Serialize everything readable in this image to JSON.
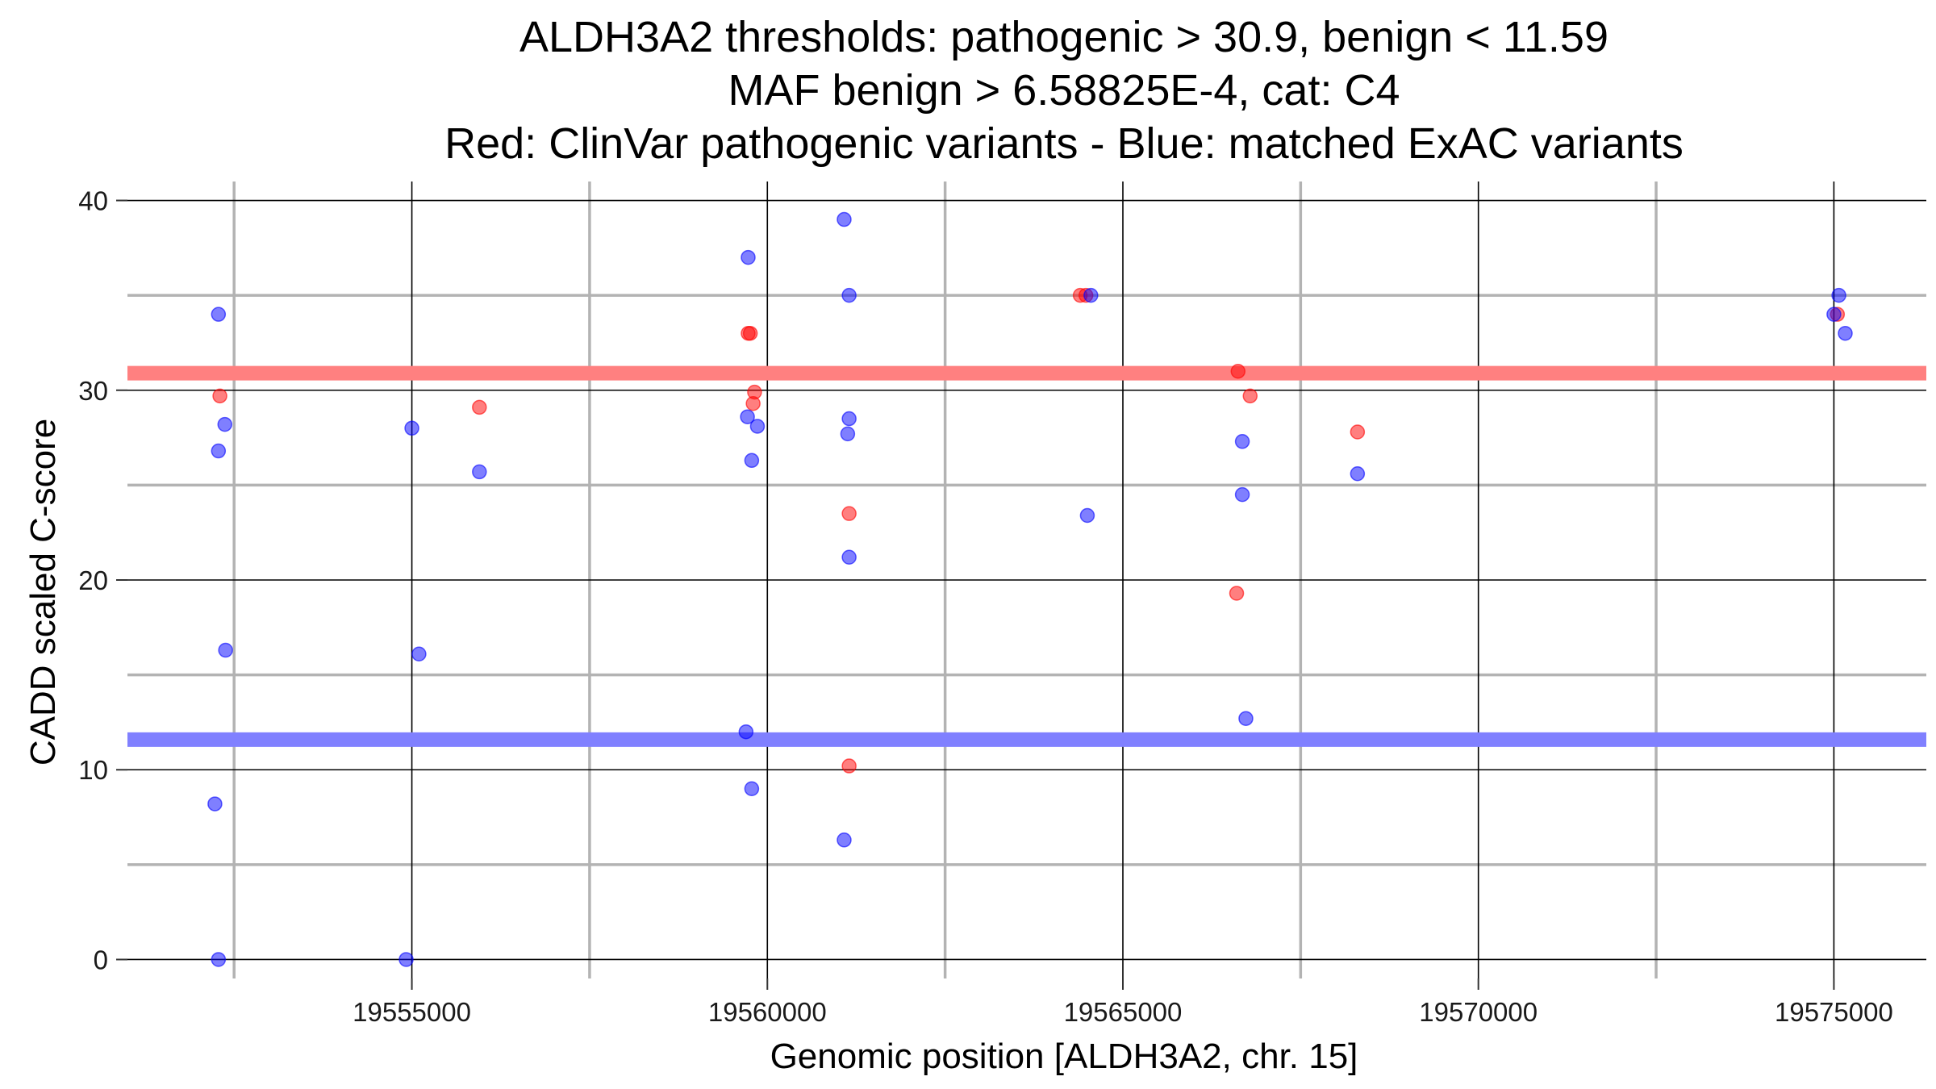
{
  "chart_data": {
    "type": "scatter",
    "title": [
      "ALDH3A2 thresholds: pathogenic > 30.9, benign < 11.59",
      "MAF benign > 6.58825E-4, cat: C4",
      "Red: ClinVar pathogenic variants - Blue: matched ExAC variants"
    ],
    "xlabel": "Genomic position [ALDH3A2, chr. 15]",
    "ylabel": "CADD scaled C-score",
    "xlim": [
      19551000,
      19576300
    ],
    "ylim": [
      -1,
      41
    ],
    "x_ticks": [
      19555000,
      19560000,
      19565000,
      19570000,
      19575000
    ],
    "x_minor_ticks": [
      19552500,
      19557500,
      19562500,
      19567500,
      19572500
    ],
    "y_ticks": [
      0,
      10,
      20,
      30,
      40
    ],
    "y_minor_ticks": [
      5,
      15,
      25,
      35
    ],
    "x_tick_labels": [
      "19555000",
      "19560000",
      "19565000",
      "19570000",
      "19575000"
    ],
    "y_tick_labels": [
      "0",
      "10",
      "20",
      "30",
      "40"
    ],
    "grid": true,
    "thresholds": [
      {
        "axis": "y",
        "value": 30.9,
        "color": "#ff8080"
      },
      {
        "axis": "y",
        "value": 11.59,
        "color": "#8080ff"
      }
    ],
    "series": [
      {
        "color": "#ff0000",
        "points": [
          [
            19552300,
            29.7
          ],
          [
            19555950,
            29.1
          ],
          [
            19559730,
            33.0
          ],
          [
            19559760,
            33.0
          ],
          [
            19559800,
            29.3
          ],
          [
            19559820,
            29.9
          ],
          [
            19561150,
            23.5
          ],
          [
            19561150,
            10.2
          ],
          [
            19564400,
            35.0
          ],
          [
            19564480,
            35.0
          ],
          [
            19566620,
            31.0
          ],
          [
            19566600,
            19.3
          ],
          [
            19566790,
            29.7
          ],
          [
            19568300,
            27.8
          ],
          [
            19575050,
            34.0
          ]
        ]
      },
      {
        "color": "#0000ff",
        "points": [
          [
            19552280,
            34.0
          ],
          [
            19552370,
            28.2
          ],
          [
            19552280,
            26.8
          ],
          [
            19552380,
            16.3
          ],
          [
            19552230,
            8.2
          ],
          [
            19552280,
            0.0
          ],
          [
            19555000,
            28.0
          ],
          [
            19555100,
            16.1
          ],
          [
            19555950,
            25.7
          ],
          [
            19554920,
            0.0
          ],
          [
            19559730,
            37.0
          ],
          [
            19559720,
            28.6
          ],
          [
            19559860,
            28.1
          ],
          [
            19559780,
            26.3
          ],
          [
            19559700,
            12.0
          ],
          [
            19559780,
            9.0
          ],
          [
            19561080,
            39.0
          ],
          [
            19561150,
            35.0
          ],
          [
            19561150,
            28.5
          ],
          [
            19561130,
            27.7
          ],
          [
            19561150,
            21.2
          ],
          [
            19561080,
            6.3
          ],
          [
            19564550,
            35.0
          ],
          [
            19564500,
            23.4
          ],
          [
            19566680,
            27.3
          ],
          [
            19566680,
            24.5
          ],
          [
            19566730,
            12.7
          ],
          [
            19568300,
            25.6
          ],
          [
            19575000,
            34.0
          ],
          [
            19575070,
            35.0
          ],
          [
            19575160,
            33.0
          ]
        ]
      }
    ]
  }
}
